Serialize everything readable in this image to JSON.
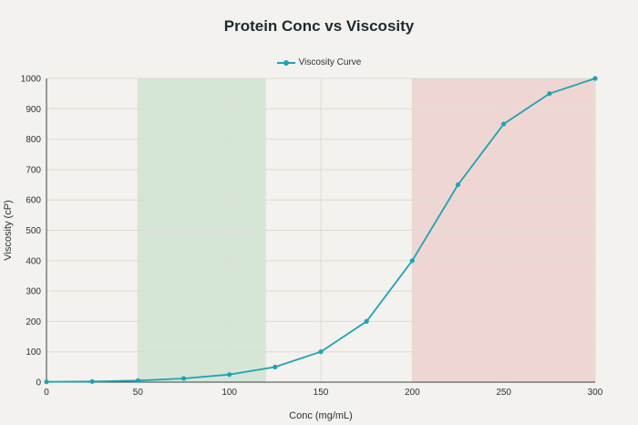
{
  "chart_data": {
    "type": "line",
    "title": "Protein Conc vs Viscosity",
    "xlabel": "Conc (mg/mL)",
    "ylabel": "Viscosity (cP)",
    "xlim": [
      0,
      300
    ],
    "ylim": [
      0,
      1000
    ],
    "x_ticks": [
      0,
      50,
      100,
      150,
      200,
      250,
      300
    ],
    "y_ticks": [
      0,
      100,
      200,
      300,
      400,
      500,
      600,
      700,
      800,
      900,
      1000
    ],
    "grid": true,
    "legend_position": "top-center",
    "series": [
      {
        "name": "Viscosity Curve",
        "color": "#1fa3b4",
        "x": [
          0,
          25,
          50,
          75,
          100,
          125,
          150,
          175,
          200,
          225,
          250,
          275,
          300
        ],
        "y": [
          1,
          2,
          5,
          12,
          25,
          50,
          100,
          200,
          400,
          650,
          850,
          950,
          1000
        ]
      }
    ],
    "shaded_regions": [
      {
        "x_start": 50,
        "x_end": 120,
        "color": "#d6e6d6"
      },
      {
        "x_start": 200,
        "x_end": 300,
        "color": "#f0d6d2"
      }
    ]
  }
}
